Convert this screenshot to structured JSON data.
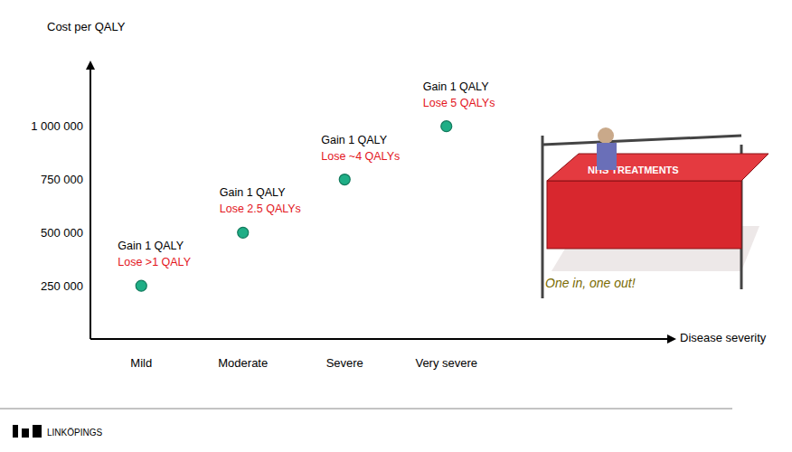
{
  "chart_data": {
    "type": "scatter",
    "y_label": "Cost per QALY",
    "x_label": "Disease severity",
    "categories": [
      "Mild",
      "Moderate",
      "Severe",
      "Very severe"
    ],
    "values": [
      250000,
      500000,
      750000,
      1000000
    ],
    "color": "#1fae86",
    "ylim": [
      0,
      1275000
    ],
    "yticks": [
      {
        "value": 250000,
        "label": "250 000"
      },
      {
        "value": 500000,
        "label": "500 000"
      },
      {
        "value": 750000,
        "label": "750 000"
      },
      {
        "value": 1000000,
        "label": "1 000 000"
      }
    ],
    "grid": false,
    "annotations": [
      [
        "Gain 1 QALY",
        "Lose >1 QALY"
      ],
      [
        "Gain 1 QALY",
        "Lose 2.5 QALYs"
      ],
      [
        "Gain 1 QALY",
        "Lose ~4 QALYs"
      ],
      [
        "Gain 1 QALY",
        "Lose 5 QALYs"
      ]
    ]
  },
  "cartoon": {
    "sign": "NHS TREATMENTS",
    "caption": "One in, one out!"
  },
  "logo": "LINKÖPINGS"
}
